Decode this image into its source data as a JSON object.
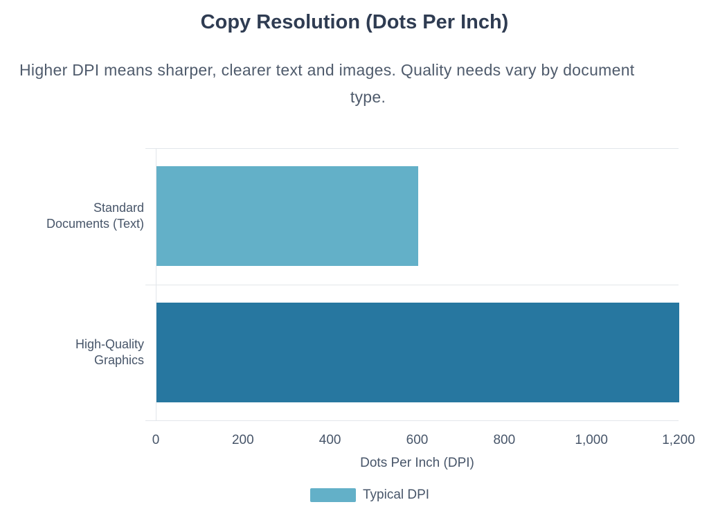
{
  "title": "Copy Resolution (Dots Per Inch)",
  "subtitle_line1": "Higher DPI means sharper, clearer text and images. Quality needs vary by document",
  "subtitle_line2": "type.",
  "chart_data": {
    "type": "bar",
    "orientation": "horizontal",
    "title": "Copy Resolution (Dots Per Inch)",
    "subtitle": "Higher DPI means sharper, clearer text and images. Quality needs vary by document type.",
    "categories": [
      "Standard Documents (Text)",
      "High-Quality Graphics"
    ],
    "series": [
      {
        "name": "Typical DPI",
        "values": [
          600,
          1200
        ]
      }
    ],
    "bar_colors": [
      "#63b0c8",
      "#2777a0"
    ],
    "xlabel": "Dots Per Inch (DPI)",
    "ylabel": "",
    "xlim": [
      0,
      1200
    ],
    "xticks": [
      0,
      200,
      400,
      600,
      800,
      1000,
      1200
    ],
    "xtick_labels": [
      "0",
      "200",
      "400",
      "600",
      "800",
      "1,000",
      "1,200"
    ],
    "grid": "horizontal-category-lines",
    "legend": {
      "label": "Typical DPI",
      "swatch_color": "#63b0c8",
      "position": "bottom-center"
    }
  },
  "colors": {
    "title_text": "#2f3c52",
    "subtitle_text": "#4f5b6c",
    "axis_text": "#475569",
    "grid_line": "#e2e6ea",
    "bar_light": "#63b0c8",
    "bar_dark": "#2777a0"
  }
}
